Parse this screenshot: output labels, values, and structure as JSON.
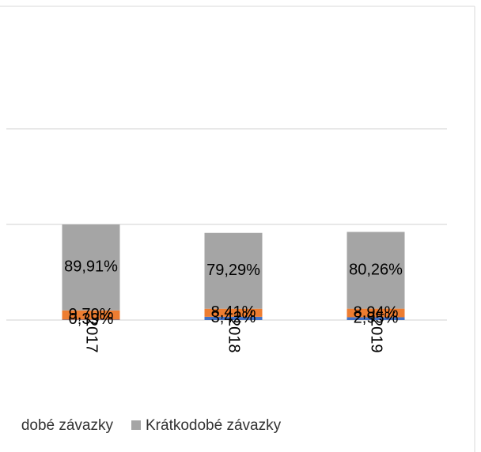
{
  "chart_data": {
    "type": "stacked_bar",
    "categories": [
      "2017",
      "2018",
      "2019"
    ],
    "series": [
      {
        "name": null,
        "color": "#4472c4",
        "values": [
          0.39,
          3.42,
          2.95
        ],
        "value_labels": [
          "0,39%",
          "3,42%",
          "2,95%"
        ]
      },
      {
        "name": "dobé závazky",
        "color": "#ed7d31",
        "values": [
          9.7,
          8.41,
          8.94
        ],
        "value_labels": [
          "9,70%",
          "8,41%",
          "8,94%"
        ]
      },
      {
        "name": "Krátkodobé závazky",
        "color": "#a5a5a5",
        "values": [
          89.91,
          79.29,
          80.26
        ],
        "value_labels": [
          "89,91%",
          "79,29%",
          "80,26%"
        ]
      }
    ],
    "ylim": [
      0,
      300
    ],
    "yticks": [
      0,
      100,
      200
    ],
    "grid": true
  }
}
